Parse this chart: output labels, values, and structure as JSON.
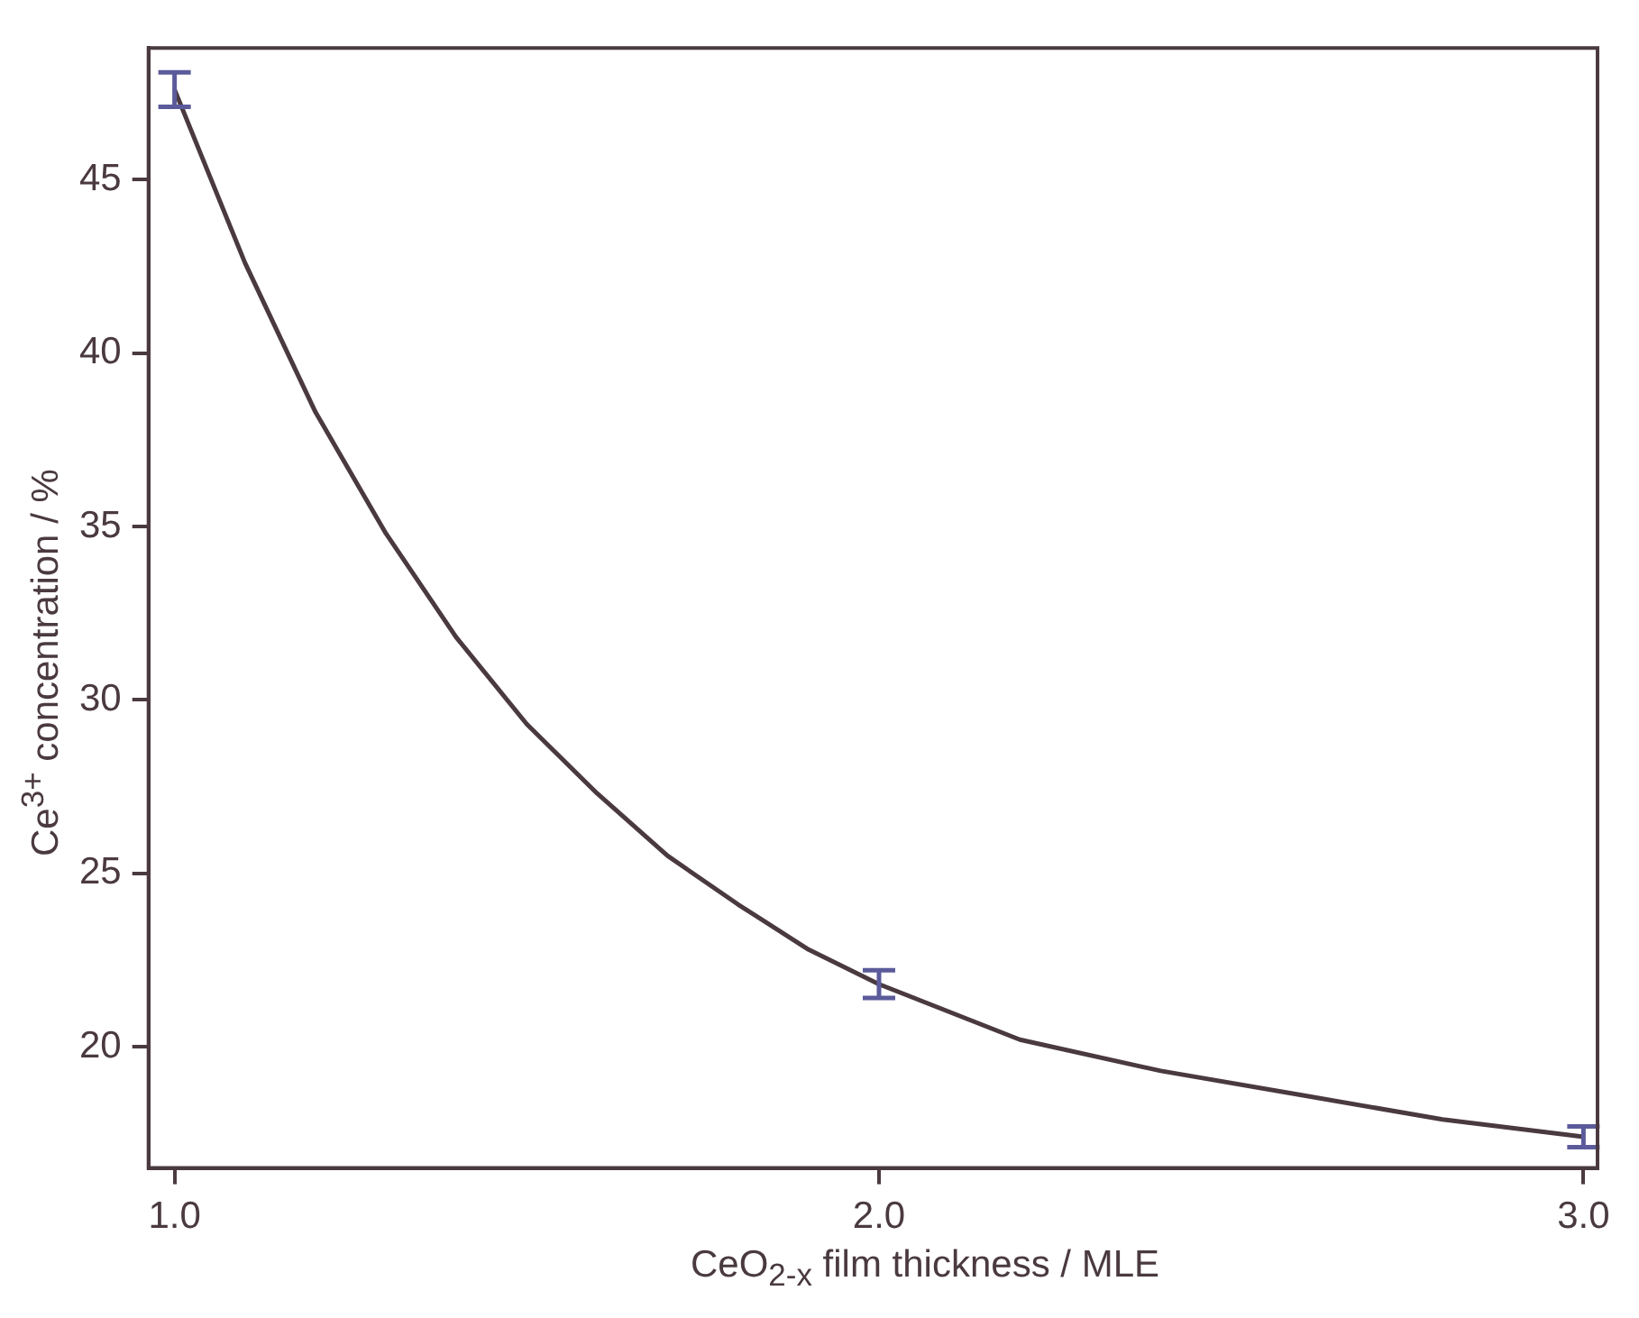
{
  "chart_data": {
    "type": "scatter",
    "xlabel": "CeO$_{2-x}$ film thickness / MLE",
    "ylabel": "Ce$^{3+}$ concentration / %",
    "xlim": [
      0.963,
      3.02
    ],
    "ylim": [
      16.5,
      48.8
    ],
    "xticks": [
      {
        "value": 1,
        "label": "1.0"
      },
      {
        "value": 2,
        "label": "2.0"
      },
      {
        "value": 3,
        "label": "3.0"
      }
    ],
    "yticks": [
      20,
      25,
      30,
      35,
      40,
      45
    ],
    "grid": false,
    "series": [
      {
        "color": "#5b5b9b",
        "x": [
          1,
          2,
          3
        ],
        "values": [
          47.6,
          21.8,
          17.4
        ],
        "errors": [
          0.5,
          0.4,
          0.3
        ]
      },
      {
        "type": "line",
        "color": "#4a3a40",
        "x": [
          1,
          1.1,
          1.2,
          1.3,
          1.4,
          1.5,
          1.6,
          1.7,
          1.8,
          1.9,
          2,
          2.2,
          2.4,
          2.6,
          2.8,
          3
        ],
        "values": [
          47.6,
          42.6,
          38.3,
          34.8,
          31.8,
          29.3,
          27.3,
          25.5,
          24.1,
          22.8,
          21.8,
          20.2,
          19.3,
          18.6,
          17.9,
          17.4
        ]
      }
    ]
  }
}
